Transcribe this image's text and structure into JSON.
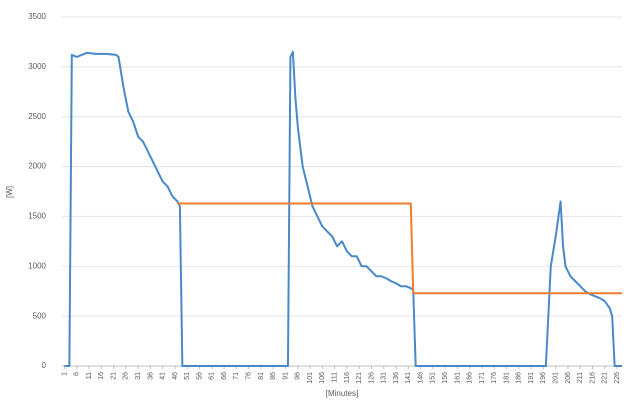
{
  "chart_data": {
    "type": "line",
    "y_label": "[W]",
    "x_label": "[Minutes]",
    "x": [
      1,
      3,
      4,
      6,
      10,
      14,
      18,
      22,
      23,
      25,
      27,
      29,
      31,
      33,
      35,
      37,
      39,
      41,
      43,
      45,
      47,
      48,
      49,
      60,
      80,
      92,
      93,
      94,
      95,
      96,
      98,
      100,
      102,
      104,
      106,
      108,
      110,
      112,
      114,
      116,
      118,
      120,
      122,
      124,
      126,
      128,
      130,
      132,
      134,
      136,
      138,
      140,
      142,
      143,
      144,
      160,
      180,
      197,
      199,
      201,
      203,
      204,
      205,
      207,
      209,
      211,
      213,
      215,
      217,
      219,
      221,
      223,
      224,
      225,
      228
    ],
    "series": [
      {
        "color": "#4a89c8",
        "values": [
          0,
          0,
          3120,
          3100,
          3140,
          3130,
          3130,
          3120,
          3100,
          2800,
          2550,
          2450,
          2300,
          2250,
          2150,
          2050,
          1950,
          1850,
          1800,
          1700,
          1650,
          1600,
          0,
          0,
          0,
          0,
          3100,
          3150,
          2700,
          2400,
          2000,
          1800,
          1600,
          1500,
          1400,
          1350,
          1300,
          1200,
          1250,
          1150,
          1100,
          1100,
          1000,
          1000,
          950,
          900,
          900,
          880,
          850,
          830,
          800,
          800,
          780,
          760,
          0,
          0,
          0,
          0,
          1000,
          1300,
          1650,
          1200,
          1000,
          900,
          850,
          800,
          750,
          720,
          700,
          680,
          650,
          580,
          500,
          0,
          0
        ]
      },
      {
        "color": "#ed7d31",
        "values": [
          null,
          null,
          null,
          null,
          null,
          null,
          null,
          null,
          null,
          null,
          null,
          null,
          null,
          null,
          null,
          null,
          null,
          null,
          null,
          null,
          1630,
          1630,
          1630,
          1630,
          1630,
          1630,
          1630,
          1630,
          1630,
          1630,
          1630,
          1630,
          1630,
          1630,
          1630,
          1630,
          1630,
          1630,
          1630,
          1630,
          1630,
          1630,
          1630,
          1630,
          1630,
          1630,
          1630,
          1630,
          1630,
          1630,
          1630,
          1630,
          1630,
          730,
          730,
          730,
          730,
          730,
          730,
          730,
          730,
          730,
          730,
          730,
          730,
          730,
          730,
          730,
          730,
          730,
          730,
          730,
          730,
          730,
          730
        ]
      }
    ],
    "xlim": [
      0,
      228
    ],
    "xticks": [
      1,
      6,
      11,
      16,
      21,
      26,
      31,
      36,
      41,
      46,
      51,
      56,
      61,
      66,
      71,
      76,
      81,
      86,
      91,
      96,
      101,
      106,
      111,
      116,
      121,
      126,
      131,
      136,
      141,
      146,
      151,
      156,
      161,
      166,
      171,
      176,
      181,
      186,
      191,
      196,
      201,
      206,
      211,
      216,
      221,
      226
    ],
    "ylim": [
      0,
      3500
    ],
    "yticks": [
      0,
      500,
      1000,
      1500,
      2000,
      2500,
      3000,
      3500
    ],
    "grid": true
  }
}
